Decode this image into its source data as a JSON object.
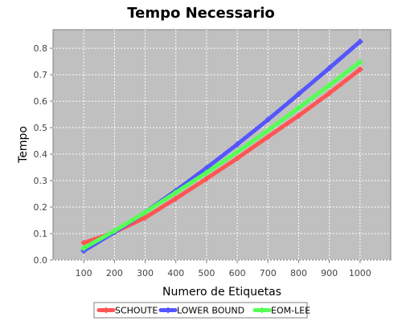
{
  "chart_data": {
    "type": "line",
    "title": "Tempo Necessario",
    "xlabel": "Numero de Etiquetas",
    "ylabel": "Tempo",
    "x": [
      100,
      200,
      300,
      400,
      500,
      600,
      700,
      800,
      900,
      1000
    ],
    "xlim": [
      0,
      1100
    ],
    "ylim": [
      0,
      0.87
    ],
    "yticks": [
      "0.0",
      "0.1",
      "0.2",
      "0.3",
      "0.4",
      "0.5",
      "0.6",
      "0.7",
      "0.8"
    ],
    "xticks": [
      "100",
      "200",
      "300",
      "400",
      "500",
      "600",
      "700",
      "800",
      "900",
      "1000"
    ],
    "grid": true,
    "plot_background": "#c0c0c0",
    "legend_position": "bottom",
    "series": [
      {
        "name": "SCHOUTE",
        "color": "#ff5555",
        "values": [
          0.065,
          0.105,
          0.16,
          0.232,
          0.307,
          0.384,
          0.465,
          0.545,
          0.63,
          0.72
        ]
      },
      {
        "name": "LOWER BOUND",
        "color": "#5555ff",
        "values": [
          0.035,
          0.105,
          0.18,
          0.262,
          0.348,
          0.437,
          0.53,
          0.627,
          0.725,
          0.825
        ]
      },
      {
        "name": "EOM-LEE",
        "color": "#55ff55",
        "values": [
          0.045,
          0.11,
          0.18,
          0.255,
          0.33,
          0.408,
          0.49,
          0.575,
          0.66,
          0.748
        ]
      }
    ]
  }
}
